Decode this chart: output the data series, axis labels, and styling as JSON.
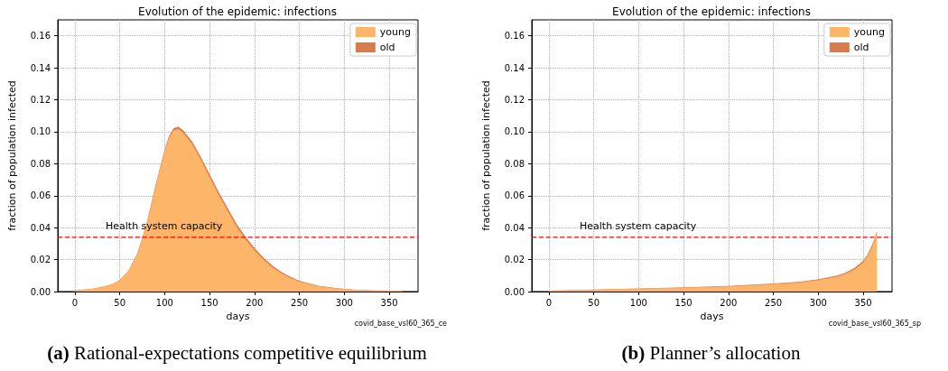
{
  "chart_data": [
    {
      "type": "area",
      "title": "Evolution of the epidemic: infections",
      "xlabel": "days",
      "ylabel": "fraction of population infected",
      "stacked": true,
      "grid": true,
      "legend": "top right",
      "x": [
        0,
        20,
        40,
        50,
        60,
        70,
        80,
        90,
        100,
        105,
        110,
        115,
        120,
        130,
        140,
        150,
        160,
        170,
        180,
        190,
        200,
        210,
        220,
        230,
        240,
        250,
        270,
        290,
        310,
        330,
        365
      ],
      "series": [
        {
          "name": "young",
          "color": "#fdb56a",
          "values": [
            0.0005,
            0.0015,
            0.0039,
            0.0069,
            0.0128,
            0.0236,
            0.0414,
            0.0651,
            0.0868,
            0.0957,
            0.1006,
            0.1015,
            0.0995,
            0.0924,
            0.0823,
            0.0712,
            0.0602,
            0.0502,
            0.0403,
            0.0324,
            0.0255,
            0.0197,
            0.0149,
            0.0111,
            0.0083,
            0.006,
            0.0032,
            0.0018,
            0.0009,
            0.0005,
            0.0002
          ]
        },
        {
          "name": "old",
          "color": "#d97c4c",
          "values": [
            0,
            0,
            0.0001,
            0.0001,
            0.0002,
            0.0004,
            0.0006,
            0.0009,
            0.0012,
            0.0013,
            0.0014,
            0.0015,
            0.0015,
            0.0016,
            0.0017,
            0.0018,
            0.0018,
            0.0018,
            0.0017,
            0.0016,
            0.0015,
            0.0013,
            0.0011,
            0.0009,
            0.0007,
            0.0005,
            0.0003,
            0.0002,
            0.0001,
            0,
            0
          ]
        }
      ],
      "xlim": [
        -19,
        382
      ],
      "xticks": [
        0,
        50,
        100,
        150,
        200,
        250,
        300,
        350
      ],
      "ylim": [
        0,
        0.17
      ],
      "yticks": [
        {
          "value": 0,
          "label": "0.00"
        },
        {
          "value": 0.02,
          "label": "0.02"
        },
        {
          "value": 0.04,
          "label": "0.04"
        },
        {
          "value": 0.06,
          "label": "0.06"
        },
        {
          "value": 0.08,
          "label": "0.08"
        },
        {
          "value": 0.1,
          "label": "0.10"
        },
        {
          "value": 0.12,
          "label": "0.12"
        },
        {
          "value": 0.14,
          "label": "0.14"
        },
        {
          "value": 0.16,
          "label": "0.16"
        }
      ],
      "ref_lines": [
        {
          "axis": "y",
          "value": 0.034,
          "label": "Health system capacity",
          "color": "#ff0000",
          "line_style": "dashed"
        }
      ],
      "annotations": [
        "covid_base_vsl60_365_ce",
        "(a) Rational-expectations competitive equilibrium"
      ]
    },
    {
      "type": "area",
      "title": "Evolution of the epidemic: infections",
      "xlabel": "days",
      "ylabel": "fraction of population infected",
      "stacked": true,
      "grid": true,
      "legend": "top right",
      "x": [
        0,
        50,
        100,
        150,
        200,
        250,
        280,
        300,
        320,
        330,
        340,
        350,
        355,
        360,
        363,
        365
      ],
      "series": [
        {
          "name": "young",
          "color": "#fdb56a",
          "values": [
            0.0003,
            0.0009,
            0.0016,
            0.0022,
            0.003,
            0.0044,
            0.0055,
            0.0069,
            0.009,
            0.0107,
            0.0136,
            0.018,
            0.022,
            0.0279,
            0.0319,
            0.0358
          ]
        },
        {
          "name": "old",
          "color": "#d97c4c",
          "values": [
            0,
            0.0001,
            0.0001,
            0.0002,
            0.0003,
            0.0004,
            0.0005,
            0.0006,
            0.0007,
            0.0008,
            0.0009,
            0.001,
            0.001,
            0.0011,
            0.0011,
            0.0012
          ]
        }
      ],
      "xlim": [
        -19,
        382
      ],
      "xticks": [
        0,
        50,
        100,
        150,
        200,
        250,
        300,
        350
      ],
      "ylim": [
        0,
        0.17
      ],
      "yticks": [
        {
          "value": 0,
          "label": "0.00"
        },
        {
          "value": 0.02,
          "label": "0.02"
        },
        {
          "value": 0.04,
          "label": "0.04"
        },
        {
          "value": 0.06,
          "label": "0.06"
        },
        {
          "value": 0.08,
          "label": "0.08"
        },
        {
          "value": 0.1,
          "label": "0.10"
        },
        {
          "value": 0.12,
          "label": "0.12"
        },
        {
          "value": 0.14,
          "label": "0.14"
        },
        {
          "value": 0.16,
          "label": "0.16"
        }
      ],
      "ref_lines": [
        {
          "axis": "y",
          "value": 0.034,
          "label": "Health system capacity",
          "color": "#ff0000",
          "line_style": "dashed"
        }
      ],
      "annotations": [
        "covid_base_vsl60_365_sp",
        "(b) Planner’s allocation"
      ]
    }
  ]
}
